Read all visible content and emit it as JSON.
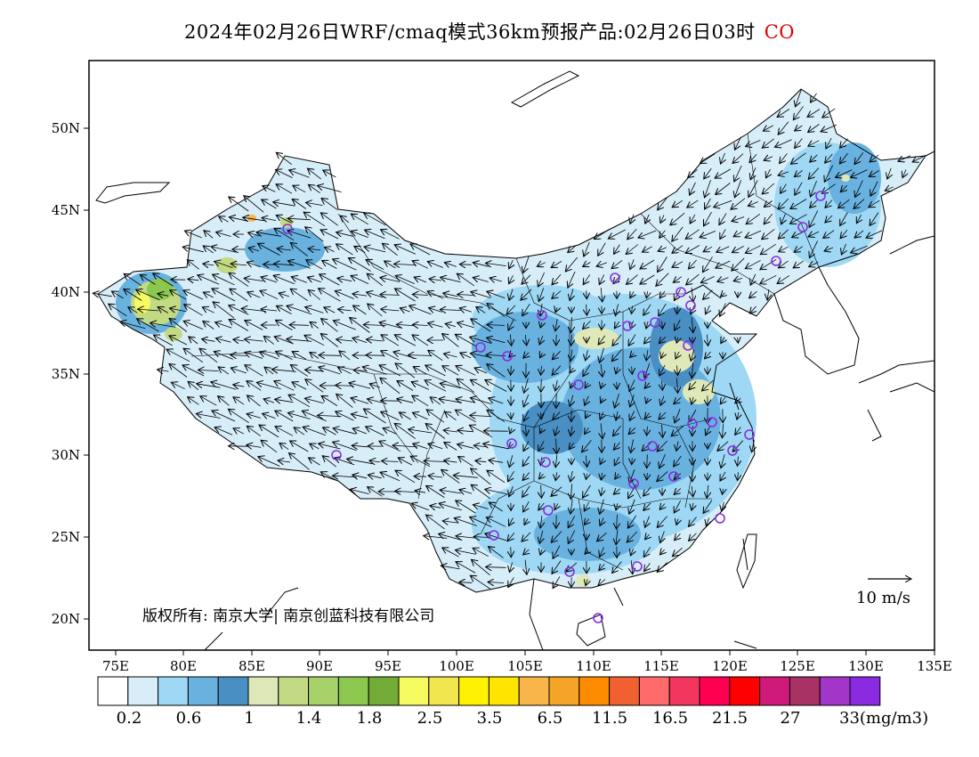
{
  "title": {
    "main": "2024年02月26日WRF/cmaq模式36km预报产品:02月26日03时",
    "pollutant": "CO",
    "pollutant_color": "#e00000"
  },
  "map": {
    "lon_ticks": [
      "75E",
      "80E",
      "85E",
      "90E",
      "95E",
      "100E",
      "105E",
      "110E",
      "115E",
      "120E",
      "125E",
      "130E",
      "135E"
    ],
    "lat_ticks": [
      "50N",
      "45N",
      "40N",
      "35N",
      "30N",
      "25N",
      "20N"
    ],
    "copyright": "版权所有: 南京大学| 南京创蓝科技有限公司",
    "wind_reference": "10 m/s"
  },
  "legend": {
    "colors": [
      "#ffffff",
      "#d7eef9",
      "#9ed8f4",
      "#69b2e0",
      "#4a8fc4",
      "#dfe8b8",
      "#c2da84",
      "#a7d26a",
      "#8cc850",
      "#72ab35",
      "#f4fa60",
      "#f2e64e",
      "#fff200",
      "#ffe500",
      "#f8b549",
      "#f6a428",
      "#fe8c00",
      "#f06030",
      "#ff6a6a",
      "#f2365d",
      "#ff0050",
      "#ff0000",
      "#d01a7a",
      "#a83264",
      "#a236c8",
      "#8a2be2"
    ],
    "labels": [
      "0.2",
      "0.6",
      "1",
      "1.4",
      "1.8",
      "2.5",
      "3.5",
      "6.5",
      "11.5",
      "16.5",
      "21.5",
      "27",
      "33(mg/m3)"
    ]
  }
}
